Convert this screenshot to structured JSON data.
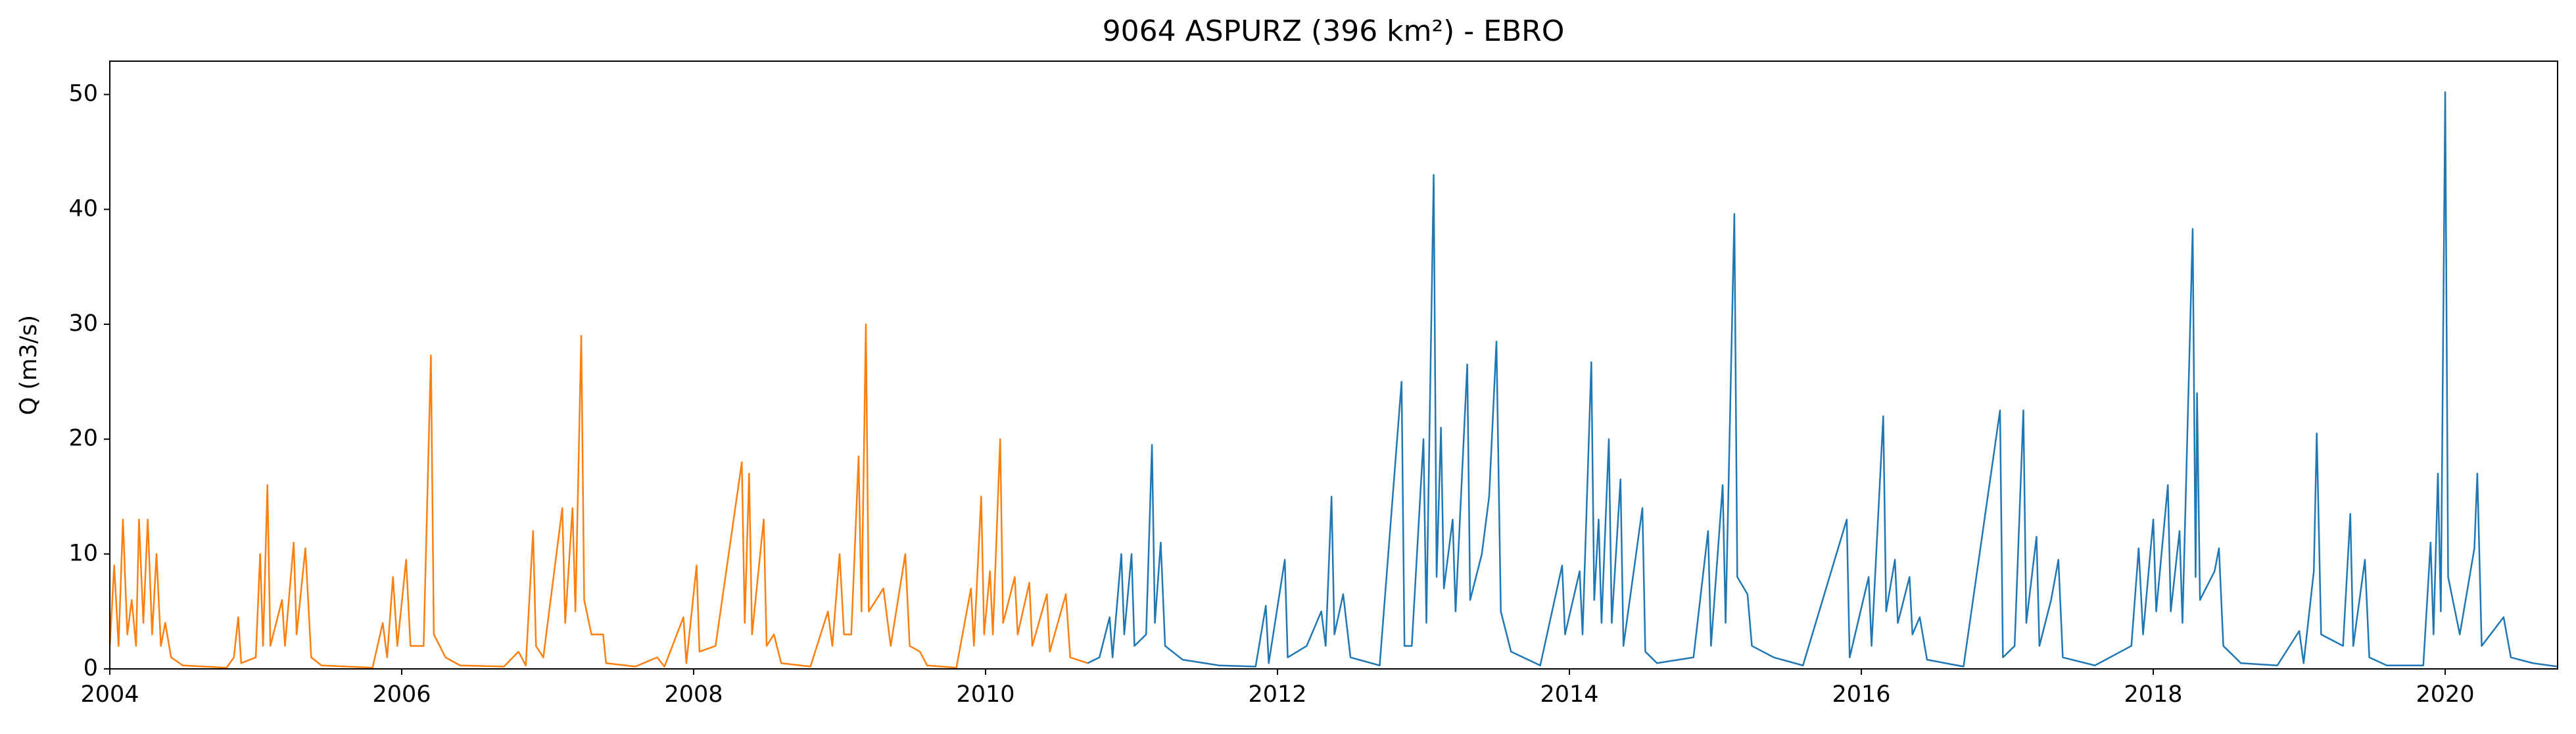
{
  "chart_data": {
    "type": "line",
    "title": "9064 ASPURZ (396 km²) - EBRO",
    "ylabel": "Q (m3/s)",
    "xlim": [
      2004,
      2020.77
    ],
    "xticks": [
      2004,
      2006,
      2008,
      2010,
      2012,
      2014,
      2016,
      2018,
      2020
    ],
    "ylim": [
      0,
      52.9
    ],
    "yticks": [
      0,
      10,
      20,
      30,
      40,
      50
    ],
    "grid": false,
    "series": [
      {
        "color": "#ff7f0e",
        "x": [
          2004.0,
          2004.03,
          2004.06,
          2004.09,
          2004.12,
          2004.15,
          2004.18,
          2004.2,
          2004.23,
          2004.26,
          2004.29,
          2004.32,
          2004.35,
          2004.38,
          2004.42,
          2004.5,
          2004.8,
          2004.85,
          2004.88,
          2004.9,
          2005.0,
          2005.03,
          2005.05,
          2005.08,
          2005.1,
          2005.18,
          2005.2,
          2005.26,
          2005.28,
          2005.34,
          2005.38,
          2005.45,
          2005.8,
          2005.87,
          2005.9,
          2005.94,
          2005.97,
          2006.03,
          2006.06,
          2006.15,
          2006.2,
          2006.22,
          2006.3,
          2006.4,
          2006.7,
          2006.8,
          2006.85,
          2006.9,
          2006.92,
          2006.97,
          2007.1,
          2007.12,
          2007.17,
          2007.19,
          2007.23,
          2007.25,
          2007.3,
          2007.38,
          2007.4,
          2007.6,
          2007.75,
          2007.8,
          2007.93,
          2007.95,
          2008.02,
          2008.04,
          2008.15,
          2008.33,
          2008.35,
          2008.38,
          2008.4,
          2008.48,
          2008.5,
          2008.55,
          2008.6,
          2008.8,
          2008.92,
          2008.95,
          2009.0,
          2009.03,
          2009.08,
          2009.13,
          2009.15,
          2009.18,
          2009.2,
          2009.3,
          2009.35,
          2009.45,
          2009.48,
          2009.55,
          2009.6,
          2009.8,
          2009.9,
          2009.92,
          2009.97,
          2009.99,
          2010.03,
          2010.05,
          2010.1,
          2010.12,
          2010.2,
          2010.22,
          2010.3,
          2010.32,
          2010.42,
          2010.44,
          2010.55,
          2010.58,
          2010.7
        ],
        "values": [
          2,
          9,
          2,
          13,
          3,
          6,
          2,
          13,
          4,
          13,
          3,
          10,
          2,
          4,
          1,
          0.3,
          0.1,
          1,
          4.5,
          0.5,
          1,
          10,
          2,
          16,
          2,
          6,
          2,
          11,
          3,
          10.5,
          1,
          0.3,
          0.1,
          4,
          1,
          8,
          2,
          9.5,
          2,
          2,
          27.3,
          3,
          1,
          0.3,
          0.2,
          1.5,
          0.3,
          12,
          2,
          1,
          14,
          4,
          14,
          5,
          29,
          6,
          3,
          3,
          0.5,
          0.2,
          1,
          0.2,
          4.5,
          0.5,
          9,
          1.5,
          2,
          18,
          4,
          17,
          3,
          13,
          2,
          3,
          0.5,
          0.2,
          5,
          2,
          10,
          3,
          3,
          18.5,
          5,
          30,
          5,
          7,
          2,
          10,
          2,
          1.5,
          0.3,
          0.1,
          7,
          2,
          15,
          3,
          8.5,
          3,
          20,
          4,
          8,
          3,
          7.5,
          2,
          6.5,
          1.5,
          6.5,
          1,
          0.5
        ]
      },
      {
        "color": "#1f77b4",
        "x": [
          2010.7,
          2010.78,
          2010.85,
          2010.87,
          2010.93,
          2010.95,
          2011.0,
          2011.02,
          2011.1,
          2011.14,
          2011.16,
          2011.2,
          2011.23,
          2011.35,
          2011.6,
          2011.85,
          2011.92,
          2011.94,
          2012.05,
          2012.07,
          2012.2,
          2012.3,
          2012.33,
          2012.37,
          2012.39,
          2012.45,
          2012.5,
          2012.7,
          2012.85,
          2012.87,
          2012.92,
          2013.0,
          2013.02,
          2013.07,
          2013.09,
          2013.12,
          2013.14,
          2013.2,
          2013.22,
          2013.3,
          2013.32,
          2013.4,
          2013.45,
          2013.5,
          2013.53,
          2013.6,
          2013.8,
          2013.95,
          2013.97,
          2014.07,
          2014.09,
          2014.15,
          2014.17,
          2014.2,
          2014.22,
          2014.27,
          2014.29,
          2014.35,
          2014.37,
          2014.5,
          2014.52,
          2014.6,
          2014.85,
          2014.95,
          2014.97,
          2015.05,
          2015.07,
          2015.13,
          2015.15,
          2015.22,
          2015.25,
          2015.4,
          2015.6,
          2015.9,
          2015.92,
          2016.05,
          2016.07,
          2016.15,
          2016.17,
          2016.23,
          2016.25,
          2016.33,
          2016.35,
          2016.4,
          2016.45,
          2016.7,
          2016.95,
          2016.97,
          2017.05,
          2017.11,
          2017.13,
          2017.2,
          2017.22,
          2017.3,
          2017.35,
          2017.38,
          2017.6,
          2017.85,
          2017.9,
          2017.93,
          2018.0,
          2018.02,
          2018.1,
          2018.12,
          2018.18,
          2018.2,
          2018.27,
          2018.29,
          2018.3,
          2018.32,
          2018.42,
          2018.45,
          2018.48,
          2018.6,
          2018.85,
          2019.0,
          2019.03,
          2019.1,
          2019.12,
          2019.15,
          2019.3,
          2019.35,
          2019.37,
          2019.45,
          2019.48,
          2019.6,
          2019.85,
          2019.9,
          2019.92,
          2019.95,
          2019.97,
          2020.0,
          2020.02,
          2020.1,
          2020.2,
          2020.22,
          2020.25,
          2020.4,
          2020.45,
          2020.6,
          2020.77
        ],
        "values": [
          0.5,
          1,
          4.5,
          1,
          10,
          3,
          10,
          2,
          3,
          19.5,
          4,
          11,
          2,
          0.8,
          0.3,
          0.2,
          5.5,
          0.5,
          9.5,
          1,
          2,
          5,
          2,
          15,
          3,
          6.5,
          1,
          0.3,
          25,
          2,
          2,
          20,
          4,
          43,
          8,
          21,
          7,
          13,
          5,
          26.5,
          6,
          10,
          15,
          28.5,
          5,
          1.5,
          0.3,
          9,
          3,
          8.5,
          3,
          26.7,
          6,
          13,
          4,
          20,
          4,
          16.5,
          2,
          14,
          1.5,
          0.5,
          1,
          12,
          2,
          16,
          4,
          39.6,
          8,
          6.5,
          2,
          1,
          0.3,
          13,
          1,
          8,
          2,
          22,
          5,
          9.5,
          4,
          8,
          3,
          4.5,
          0.8,
          0.2,
          22.5,
          1,
          2,
          22.5,
          4,
          11.5,
          2,
          6,
          9.5,
          1,
          0.3,
          2,
          10.5,
          3,
          13,
          5,
          16,
          5,
          12,
          4,
          38.3,
          8,
          24,
          6,
          8.5,
          10.5,
          2,
          0.5,
          0.3,
          3.3,
          0.5,
          8.5,
          20.5,
          3,
          2,
          13.5,
          2,
          9.5,
          1,
          0.3,
          0.3,
          11,
          3,
          17,
          5,
          50.2,
          8,
          3,
          10.5,
          17,
          2,
          4.5,
          1,
          0.5,
          0.2
        ]
      }
    ]
  }
}
